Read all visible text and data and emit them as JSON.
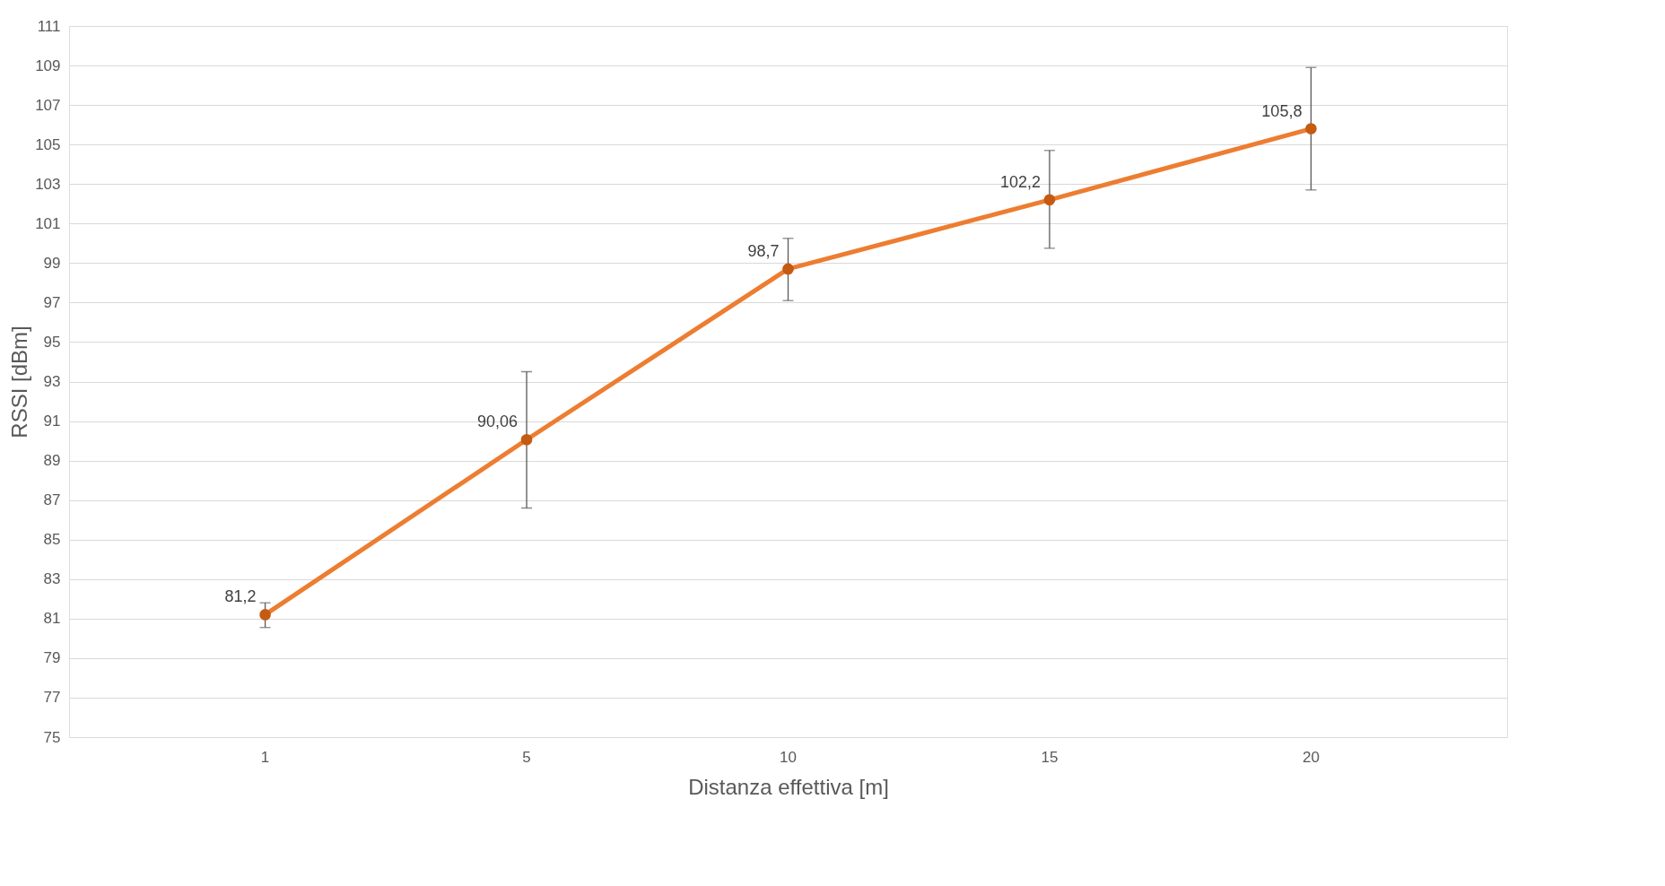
{
  "chart_data": {
    "type": "line",
    "xlabel": "Distanza effettiva [m]",
    "ylabel": "RSSI [dBm]",
    "categories": [
      "1",
      "5",
      "10",
      "15",
      "20"
    ],
    "series": [
      {
        "color": "#ed7d31",
        "values": [
          81.2,
          90.06,
          98.7,
          102.2,
          105.8
        ],
        "errors": [
          [
            80.55,
            81.8
          ],
          [
            86.6,
            93.5
          ],
          [
            97.1,
            100.25
          ],
          [
            99.75,
            104.7
          ],
          [
            102.7,
            108.9
          ]
        ],
        "value_labels": [
          "81,2",
          "90,06",
          "98,7",
          "102,2",
          "105,8"
        ]
      }
    ],
    "ylim": [
      75,
      111
    ],
    "yticks": [
      75,
      77,
      79,
      81,
      83,
      85,
      87,
      89,
      91,
      93,
      95,
      97,
      99,
      101,
      103,
      105,
      107,
      109,
      111
    ],
    "grid": "y",
    "marker": "circle",
    "line_style": "solid"
  }
}
